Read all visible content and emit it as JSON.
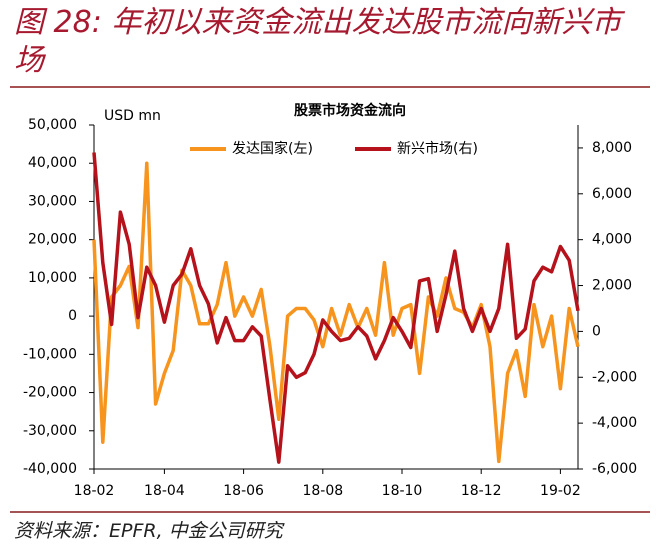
{
  "chart_data": {
    "type": "line",
    "title": "图 28: 年初以来资金流出发达股市流向新兴市场",
    "chart_title": "股票市场资金流向",
    "y_label": "USD mn",
    "source": "资料来源：EPFR, 中金公司研究",
    "legend": "top-center",
    "categories": [
      "18-02",
      null,
      null,
      null,
      null,
      null,
      null,
      null,
      "18-04",
      null,
      null,
      null,
      null,
      null,
      null,
      null,
      null,
      "18-06",
      null,
      null,
      null,
      null,
      null,
      null,
      null,
      null,
      "18-08",
      null,
      null,
      null,
      null,
      null,
      null,
      null,
      null,
      "18-10",
      null,
      null,
      null,
      null,
      null,
      null,
      null,
      null,
      "18-12",
      null,
      null,
      null,
      null,
      null,
      null,
      null,
      null,
      "19-02",
      null,
      null
    ],
    "ylim": [
      -40000,
      50000
    ],
    "yticks": [
      {
        "value": 50000,
        "label": "50,000"
      },
      {
        "value": 40000,
        "label": "40,000"
      },
      {
        "value": 30000,
        "label": "30,000"
      },
      {
        "value": 20000,
        "label": "20,000"
      },
      {
        "value": 10000,
        "label": "10,000"
      },
      0,
      {
        "value": -10000,
        "label": "-10,000"
      },
      {
        "value": -20000,
        "label": "-20,000"
      },
      {
        "value": -30000,
        "label": "-30,000"
      },
      {
        "value": -40000,
        "label": "-40,000"
      }
    ],
    "y2lim": [
      -6000,
      9000
    ],
    "y2ticks": [
      {
        "value": 8000,
        "label": "8,000"
      },
      {
        "value": 6000,
        "label": "6,000"
      },
      {
        "value": 4000,
        "label": "4,000"
      },
      {
        "value": 2000,
        "label": "2,000"
      },
      0,
      {
        "value": -2000,
        "label": "-2,000"
      },
      {
        "value": -4000,
        "label": "-4,000"
      },
      {
        "value": -6000,
        "label": "-6,000"
      }
    ],
    "series": [
      {
        "name": "发达国家(左)",
        "color": "#f7941d",
        "values": [
          20000,
          -33000,
          5000,
          8000,
          13000,
          -3000,
          40000,
          -23000,
          -15000,
          -9000,
          12000,
          8000,
          -2000,
          -2000,
          3000,
          14000,
          0,
          5000,
          0,
          7000,
          -8000,
          -27000,
          0,
          2000,
          2000,
          -1000,
          -8000,
          2000,
          -5000,
          3000,
          -3000,
          2000,
          -5000,
          14000,
          -5000,
          2000,
          3000,
          -15000,
          5000,
          0,
          10000,
          2000,
          1000,
          -3000,
          3000,
          -8000,
          -38000,
          -15000,
          -9000,
          -21000,
          3000,
          -8000,
          0,
          -19000,
          2000,
          -8000
        ]
      },
      {
        "name": "新兴市场(右)",
        "color": "#b5121b",
        "axis": "y2",
        "values": [
          7800,
          3000,
          300,
          5200,
          3800,
          600,
          2800,
          2000,
          400,
          2000,
          2500,
          3600,
          2000,
          1200,
          -500,
          600,
          -400,
          -400,
          200,
          -200,
          -3000,
          -5700,
          -1500,
          -2000,
          -1800,
          -1000,
          500,
          0,
          -400,
          -300,
          200,
          -200,
          -1200,
          -400,
          600,
          0,
          -700,
          2200,
          2300,
          0,
          1600,
          3500,
          1000,
          0,
          1000,
          0,
          1000,
          3800,
          -300,
          100,
          2200,
          2800,
          2600,
          3700,
          3100,
          900
        ]
      }
    ]
  }
}
